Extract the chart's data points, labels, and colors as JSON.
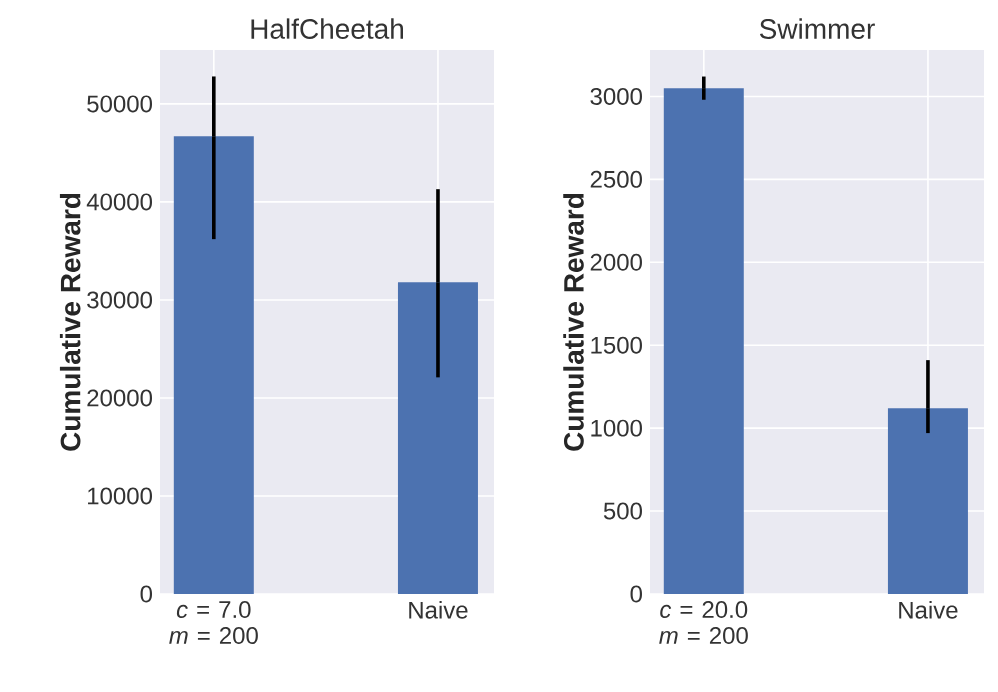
{
  "chart_data": [
    {
      "type": "bar",
      "title": "HalfCheetah",
      "ylabel": "Cumulative Reward",
      "categories": [
        "*c* = 7.0 *m* = 200",
        "Naive"
      ],
      "values": [
        46700,
        31800
      ],
      "errors": [
        [
          36200,
          52800
        ],
        [
          22100,
          41300
        ]
      ],
      "color": "#4c72b0",
      "ylim": [
        0,
        55500
      ],
      "yticks": [
        0,
        10000,
        20000,
        30000,
        40000,
        50000
      ],
      "grid": true
    },
    {
      "type": "bar",
      "title": "Swimmer",
      "ylabel": "Cumulative Reward",
      "categories": [
        "*c* = 20.0 *m* = 200",
        "Naive"
      ],
      "values": [
        3050,
        1120
      ],
      "errors": [
        [
          2980,
          3120
        ],
        [
          970,
          1410
        ]
      ],
      "color": "#4c72b0",
      "ylim": [
        0,
        3280
      ],
      "yticks": [
        0,
        500,
        1000,
        1500,
        2000,
        2500,
        3000
      ],
      "grid": true
    }
  ]
}
